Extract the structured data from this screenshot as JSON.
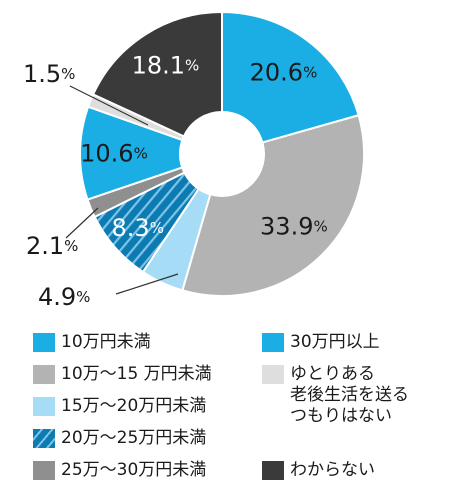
{
  "chart_data": {
    "type": "pie",
    "donut": true,
    "slices": [
      {
        "label": "30万円以上",
        "value": 20.6,
        "display": "20.6",
        "color": "#1aaee4"
      },
      {
        "label": "10万～15 万円未満",
        "value": 33.9,
        "display": "33.9",
        "color": "#b3b3b3"
      },
      {
        "label": "15万～20万円未満",
        "value": 4.9,
        "display": "4.9",
        "color": "#a6dcf5"
      },
      {
        "label": "20万～25万円未満",
        "value": 8.3,
        "display": "8.3",
        "color": "#0b7bb2",
        "pattern": "hatch"
      },
      {
        "label": "25万～30万円未満",
        "value": 2.1,
        "display": "2.1",
        "color": "#8f8f8f"
      },
      {
        "label": "10万円未満",
        "value": 10.6,
        "display": "10.6",
        "color": "#1aaee4"
      },
      {
        "label": "ゆとりある\n老後生活を送る\nつもりはない",
        "value": 1.5,
        "display": "1.5",
        "color": "#dedede"
      },
      {
        "label": "わからない",
        "value": 18.1,
        "display": "18.1",
        "color": "#3a3a3a"
      }
    ],
    "unit": "%",
    "legend_placement": "bottom"
  },
  "legend": [
    {
      "label": "10万円未満",
      "color": "#1aaee4"
    },
    {
      "label": "10万～15 万円未満",
      "color": "#b3b3b3"
    },
    {
      "label": "15万～20万円未満",
      "color": "#a6dcf5"
    },
    {
      "label": "20万～25万円未満",
      "color": "#0b7bb2",
      "pattern": "hatch"
    },
    {
      "label": "25万～30万円未満",
      "color": "#8f8f8f"
    },
    {
      "label": "30万円以上",
      "color": "#1aaee4"
    },
    {
      "label": "ゆとりある\n老後生活を送る\nつもりはない",
      "color": "#dedede"
    },
    {
      "label": "わからない",
      "color": "#3a3a3a"
    }
  ]
}
